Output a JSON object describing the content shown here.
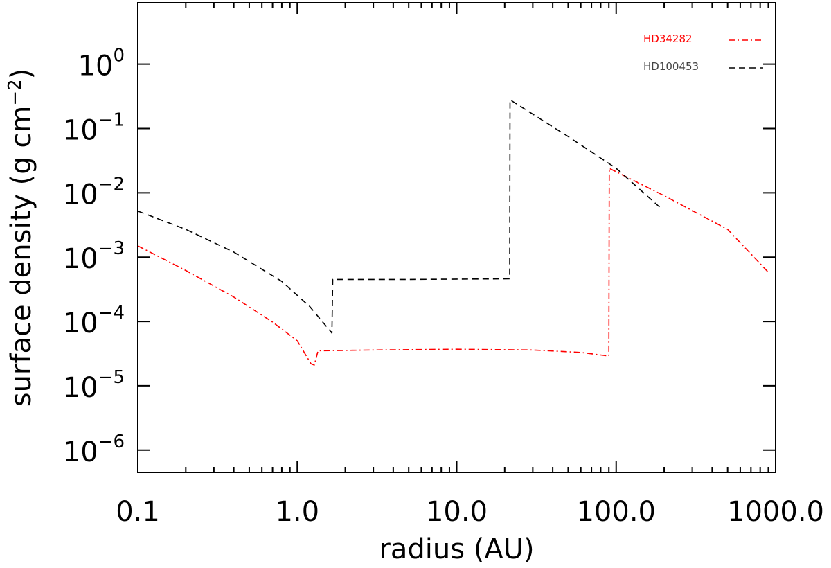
{
  "chart_data": {
    "type": "line",
    "xlabel": "radius (AU)",
    "ylabel": "surface density (g cm",
    "ylabel_exp": "−2",
    "ylabel_close": ")",
    "x_scale": "log",
    "y_scale": "log",
    "xlim": [
      0.1,
      1000
    ],
    "ylim": [
      4.5e-07,
      9.0
    ],
    "x_tick_labels": [
      {
        "value": 0.1,
        "label": "0.1"
      },
      {
        "value": 1,
        "label": "1.0"
      },
      {
        "value": 10,
        "label": "10.0"
      },
      {
        "value": 100,
        "label": "100.0"
      },
      {
        "value": 1000,
        "label": "1000.0"
      }
    ],
    "y_tick_labels": [
      {
        "value": 1.0,
        "base": "10",
        "exp": "0"
      },
      {
        "value": 0.1,
        "base": "10",
        "exp": "−1"
      },
      {
        "value": 0.01,
        "base": "10",
        "exp": "−2"
      },
      {
        "value": 0.001,
        "base": "10",
        "exp": "−3"
      },
      {
        "value": 0.0001,
        "base": "10",
        "exp": "−4"
      },
      {
        "value": 1e-05,
        "base": "10",
        "exp": "−5"
      },
      {
        "value": 1e-06,
        "base": "10",
        "exp": "−6"
      }
    ],
    "grid": false,
    "legend_position": "top-right",
    "series": [
      {
        "name": "HD34282",
        "color": "#ff0000",
        "style": "dash-dot",
        "points": [
          [
            0.1,
            0.0015
          ],
          [
            0.2,
            0.00062
          ],
          [
            0.4,
            0.00024
          ],
          [
            0.7,
            9.8e-05
          ],
          [
            1.0,
            5e-05
          ],
          [
            1.22,
            2.2e-05
          ],
          [
            1.28,
            2.1e-05
          ],
          [
            1.35,
            3.5e-05
          ],
          [
            3.0,
            3.6e-05
          ],
          [
            10.0,
            3.7e-05
          ],
          [
            30.0,
            3.6e-05
          ],
          [
            60.0,
            3.3e-05
          ],
          [
            90.0,
            2.9e-05
          ],
          [
            90.5,
            0.024
          ],
          [
            200.0,
            0.009
          ],
          [
            500.0,
            0.0027
          ],
          [
            900.0,
            0.00058
          ]
        ]
      },
      {
        "name": "HD100453",
        "color": "#000000",
        "style": "dashed",
        "points": [
          [
            0.1,
            0.0052
          ],
          [
            0.2,
            0.0027
          ],
          [
            0.4,
            0.0012
          ],
          [
            0.8,
            0.00042
          ],
          [
            1.2,
            0.00017
          ],
          [
            1.65,
            6.6e-05
          ],
          [
            1.67,
            0.00045
          ],
          [
            5.0,
            0.00045
          ],
          [
            21.5,
            0.00046
          ],
          [
            21.6,
            0.28
          ],
          [
            50.0,
            0.075
          ],
          [
            100.0,
            0.024
          ],
          [
            195.0,
            0.0055
          ]
        ]
      }
    ]
  }
}
